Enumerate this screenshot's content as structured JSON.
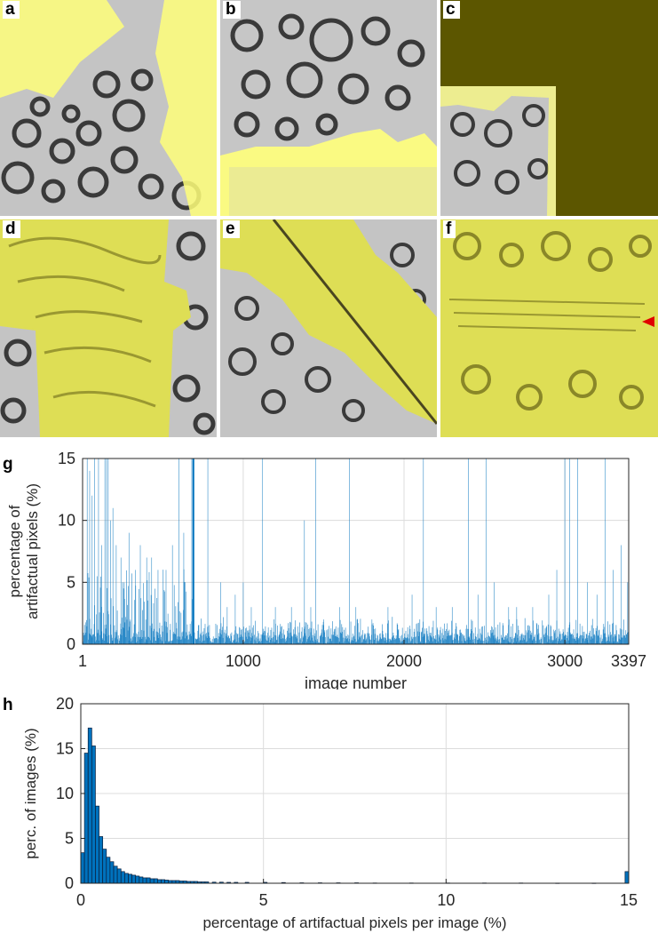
{
  "figure": {
    "panels": [
      {
        "id": "a",
        "label": "a"
      },
      {
        "id": "b",
        "label": "b"
      },
      {
        "id": "c",
        "label": "c"
      },
      {
        "id": "d",
        "label": "d"
      },
      {
        "id": "e",
        "label": "e"
      },
      {
        "id": "f",
        "label": "f"
      }
    ],
    "overlay_color": "#ffff7a",
    "dark_overlay_color": "#5c5600",
    "marker_color": "#e00000"
  },
  "chart_data": [
    {
      "id": "g",
      "panel_label": "g",
      "type": "bar",
      "xlabel": "image number",
      "ylabel_lines": [
        "percentage of",
        "artifactual pixels (%)"
      ],
      "xlim": [
        1,
        3397
      ],
      "ylim": [
        0,
        15
      ],
      "xticks": [
        1,
        1000,
        2000,
        3000,
        3397
      ],
      "xtick_labels": [
        "1",
        "1000",
        "2000",
        "3000",
        "3397"
      ],
      "yticks": [
        0,
        5,
        10,
        15
      ],
      "ytick_labels": [
        "0",
        "5",
        "10",
        "15"
      ],
      "grid": true,
      "color": "#0072bd",
      "peaks": [
        {
          "x": 30,
          "y": 15
        },
        {
          "x": 45,
          "y": 14
        },
        {
          "x": 60,
          "y": 12
        },
        {
          "x": 75,
          "y": 15
        },
        {
          "x": 100,
          "y": 15
        },
        {
          "x": 120,
          "y": 8
        },
        {
          "x": 140,
          "y": 15
        },
        {
          "x": 150,
          "y": 15
        },
        {
          "x": 160,
          "y": 15
        },
        {
          "x": 175,
          "y": 10
        },
        {
          "x": 190,
          "y": 11
        },
        {
          "x": 210,
          "y": 8
        },
        {
          "x": 240,
          "y": 7
        },
        {
          "x": 260,
          "y": 5
        },
        {
          "x": 290,
          "y": 9
        },
        {
          "x": 330,
          "y": 6
        },
        {
          "x": 360,
          "y": 8
        },
        {
          "x": 400,
          "y": 7
        },
        {
          "x": 430,
          "y": 7
        },
        {
          "x": 470,
          "y": 6
        },
        {
          "x": 520,
          "y": 6
        },
        {
          "x": 560,
          "y": 8
        },
        {
          "x": 600,
          "y": 15
        },
        {
          "x": 630,
          "y": 9
        },
        {
          "x": 680,
          "y": 15
        },
        {
          "x": 690,
          "y": 15
        },
        {
          "x": 780,
          "y": 15
        },
        {
          "x": 860,
          "y": 5
        },
        {
          "x": 900,
          "y": 3
        },
        {
          "x": 950,
          "y": 4
        },
        {
          "x": 1000,
          "y": 5
        },
        {
          "x": 1050,
          "y": 3
        },
        {
          "x": 1120,
          "y": 15
        },
        {
          "x": 1200,
          "y": 3
        },
        {
          "x": 1300,
          "y": 3
        },
        {
          "x": 1380,
          "y": 10
        },
        {
          "x": 1420,
          "y": 3
        },
        {
          "x": 1450,
          "y": 15
        },
        {
          "x": 1500,
          "y": 2
        },
        {
          "x": 1600,
          "y": 3
        },
        {
          "x": 1660,
          "y": 15
        },
        {
          "x": 1700,
          "y": 3
        },
        {
          "x": 1800,
          "y": 2
        },
        {
          "x": 1900,
          "y": 3
        },
        {
          "x": 2050,
          "y": 4
        },
        {
          "x": 2120,
          "y": 15
        },
        {
          "x": 2200,
          "y": 3
        },
        {
          "x": 2300,
          "y": 3
        },
        {
          "x": 2400,
          "y": 15
        },
        {
          "x": 2460,
          "y": 4
        },
        {
          "x": 2510,
          "y": 15
        },
        {
          "x": 2560,
          "y": 5
        },
        {
          "x": 2650,
          "y": 3
        },
        {
          "x": 2700,
          "y": 3
        },
        {
          "x": 2800,
          "y": 3
        },
        {
          "x": 2900,
          "y": 4
        },
        {
          "x": 2950,
          "y": 6
        },
        {
          "x": 3000,
          "y": 15
        },
        {
          "x": 3030,
          "y": 15
        },
        {
          "x": 3080,
          "y": 15
        },
        {
          "x": 3140,
          "y": 5
        },
        {
          "x": 3200,
          "y": 4
        },
        {
          "x": 3250,
          "y": 15
        },
        {
          "x": 3300,
          "y": 6
        },
        {
          "x": 3350,
          "y": 8
        },
        {
          "x": 3390,
          "y": 5
        }
      ]
    },
    {
      "id": "h",
      "panel_label": "h",
      "type": "bar",
      "xlabel": "percentage of artifactual pixels per image (%)",
      "ylabel": "perc. of images (%)",
      "xlim": [
        0,
        15
      ],
      "ylim": [
        0,
        20
      ],
      "xticks": [
        0,
        5,
        10,
        15
      ],
      "xtick_labels": [
        "0",
        "5",
        "10",
        "15"
      ],
      "yticks": [
        0,
        5,
        10,
        15,
        20
      ],
      "ytick_labels": [
        "0",
        "5",
        "10",
        "15",
        "20"
      ],
      "grid": true,
      "color": "#0072bd",
      "bin_width": 0.1,
      "bin_starts": [
        0,
        0.1,
        0.2,
        0.3,
        0.4,
        0.5,
        0.6,
        0.7,
        0.8,
        0.9,
        1.0,
        1.1,
        1.2,
        1.3,
        1.4,
        1.5,
        1.6,
        1.7,
        1.8,
        1.9,
        2.0,
        2.1,
        2.2,
        2.3,
        2.4,
        2.5,
        2.6,
        2.7,
        2.8,
        2.9,
        3.0,
        3.1,
        3.2,
        3.3,
        3.4,
        3.6,
        3.8,
        4.0,
        4.2,
        4.5,
        5.0,
        5.5,
        6.0,
        6.5,
        7.0,
        7.5,
        8.0,
        9.0,
        10.0,
        11.0,
        12.0,
        13.0,
        14.0,
        14.9
      ],
      "values": [
        3.4,
        14.5,
        17.3,
        15.3,
        8.6,
        5.2,
        3.8,
        2.9,
        2.4,
        1.9,
        1.6,
        1.3,
        1.1,
        1.0,
        0.9,
        0.8,
        0.7,
        0.6,
        0.6,
        0.5,
        0.5,
        0.4,
        0.4,
        0.35,
        0.3,
        0.3,
        0.3,
        0.25,
        0.25,
        0.2,
        0.2,
        0.2,
        0.15,
        0.15,
        0.15,
        0.12,
        0.12,
        0.1,
        0.1,
        0.1,
        0.1,
        0.08,
        0.05,
        0.05,
        0.05,
        0.05,
        0.03,
        0.03,
        0.03,
        0.03,
        0.03,
        0.02,
        0.02,
        1.3
      ]
    }
  ]
}
